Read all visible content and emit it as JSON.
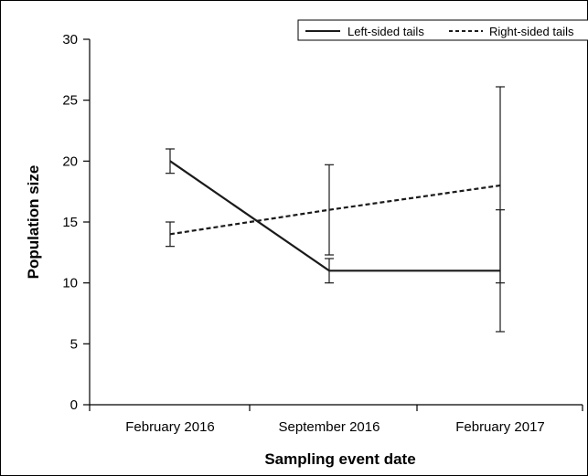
{
  "chart_data": {
    "type": "line",
    "categories": [
      "February 2016",
      "September 2016",
      "February 2017"
    ],
    "series": [
      {
        "name": "Left-sided tails",
        "values": [
          20,
          11,
          11
        ],
        "error_low": [
          19,
          10,
          6
        ],
        "error_high": [
          21,
          12,
          16
        ],
        "style": "solid"
      },
      {
        "name": "Right-sided tails",
        "values": [
          14,
          16,
          18
        ],
        "error_low": [
          13,
          12.3,
          10
        ],
        "error_high": [
          15,
          19.7,
          26.1
        ],
        "style": "dashed"
      }
    ],
    "xlabel": "Sampling event date",
    "ylabel": "Population size",
    "ylim": [
      0,
      30
    ],
    "yticks": [
      0,
      5,
      10,
      15,
      20,
      25,
      30
    ],
    "grid": false,
    "legend_position": "top-right",
    "colors": {
      "line": "#1a1a1a",
      "axis": "#000000",
      "frame": "#000000"
    }
  }
}
